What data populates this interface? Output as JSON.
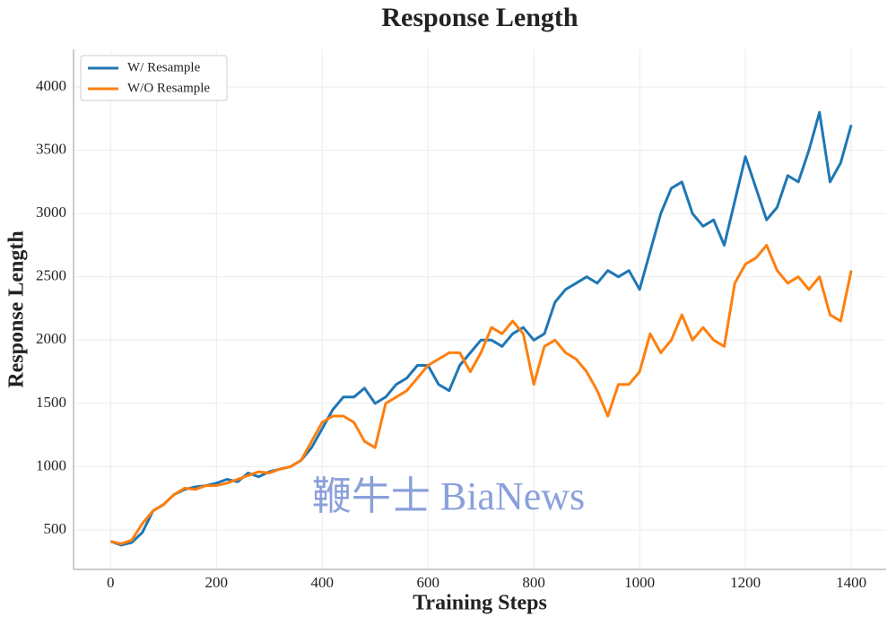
{
  "chart_data": {
    "type": "line",
    "title": "Response Length",
    "xlabel": "Training Steps",
    "ylabel": "Response Length",
    "watermark": "鞭牛士 BiaNews",
    "x": [
      0,
      20,
      40,
      60,
      80,
      100,
      120,
      140,
      160,
      180,
      200,
      220,
      240,
      260,
      280,
      300,
      320,
      340,
      360,
      380,
      400,
      420,
      440,
      460,
      480,
      500,
      520,
      540,
      560,
      580,
      600,
      620,
      640,
      660,
      680,
      700,
      720,
      740,
      760,
      780,
      800,
      820,
      840,
      860,
      880,
      900,
      920,
      940,
      960,
      980,
      1000,
      1020,
      1040,
      1060,
      1080,
      1100,
      1120,
      1140,
      1160,
      1180,
      1200,
      1220,
      1240,
      1260,
      1280,
      1300,
      1320,
      1340,
      1360,
      1380,
      1400
    ],
    "series": [
      {
        "name": "W/ Resample",
        "color": "#1f77b4",
        "values": [
          410,
          380,
          400,
          480,
          650,
          700,
          780,
          820,
          840,
          850,
          870,
          900,
          880,
          950,
          920,
          960,
          980,
          1000,
          1050,
          1150,
          1300,
          1450,
          1550,
          1550,
          1620,
          1500,
          1550,
          1650,
          1700,
          1800,
          1800,
          1650,
          1600,
          1800,
          1900,
          2000,
          2000,
          1950,
          2050,
          2100,
          2000,
          2050,
          2300,
          2400,
          2450,
          2500,
          2450,
          2550,
          2500,
          2550,
          2400,
          2700,
          3000,
          3200,
          3250,
          3000,
          2900,
          2950,
          2750,
          3100,
          3450,
          3200,
          2950,
          3050,
          3300,
          3250,
          3500,
          3800,
          3250,
          3400,
          3700
        ]
      },
      {
        "name": "W/O Resample",
        "color": "#ff7f0e",
        "values": [
          410,
          390,
          420,
          550,
          650,
          700,
          780,
          830,
          820,
          850,
          850,
          870,
          900,
          930,
          960,
          950,
          980,
          1000,
          1050,
          1200,
          1350,
          1400,
          1400,
          1350,
          1200,
          1150,
          1500,
          1550,
          1600,
          1700,
          1800,
          1850,
          1900,
          1900,
          1750,
          1900,
          2100,
          2050,
          2150,
          2050,
          1650,
          1950,
          2000,
          1900,
          1850,
          1750,
          1600,
          1400,
          1650,
          1650,
          1750,
          2050,
          1900,
          2000,
          2200,
          2000,
          2100,
          2000,
          1950,
          2450,
          2600,
          2650,
          2750,
          2550,
          2450,
          2500,
          2400,
          2500,
          2200,
          2150,
          2550
        ]
      }
    ],
    "xlim": [
      -70,
      1466
    ],
    "xticks": [
      0,
      200,
      400,
      600,
      800,
      1000,
      1200,
      1400
    ],
    "ylim": [
      188,
      4298
    ],
    "yticks": [
      500,
      1000,
      1500,
      2000,
      2500,
      3000,
      3500,
      4000
    ],
    "grid": true,
    "legend": "upper left"
  }
}
